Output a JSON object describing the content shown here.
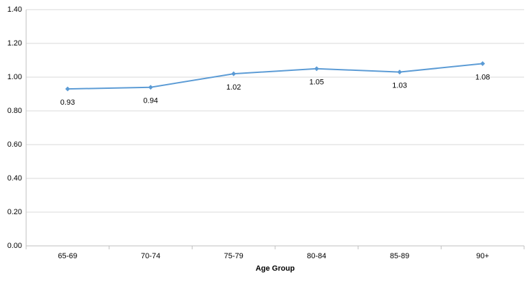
{
  "chart_data": {
    "type": "line",
    "x_label": "Age Group",
    "categories": [
      "65-69",
      "70-74",
      "75-79",
      "80-84",
      "85-89",
      "90+"
    ],
    "values": [
      0.93,
      0.94,
      1.02,
      1.05,
      1.03,
      1.08
    ],
    "color": "#5b9bd5",
    "ylim": [
      0,
      1.4
    ],
    "yticks": [
      {
        "value": 0,
        "label": "0.00"
      },
      {
        "value": 0.2,
        "label": "0.20"
      },
      {
        "value": 0.4,
        "label": "0.40"
      },
      {
        "value": 0.6,
        "label": "0.60"
      },
      {
        "value": 0.8,
        "label": "0.80"
      },
      {
        "value": 1,
        "label": "1.00"
      },
      {
        "value": 1.2,
        "label": "1.20"
      },
      {
        "value": 1.4,
        "label": "1.40"
      }
    ],
    "grid": true
  }
}
